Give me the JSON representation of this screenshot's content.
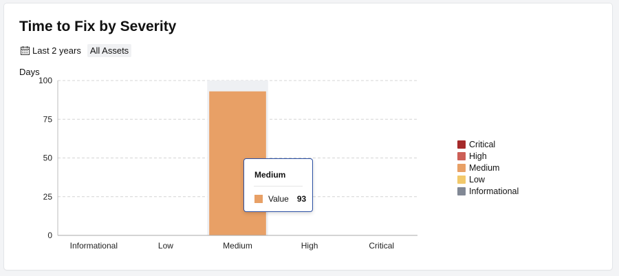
{
  "card": {
    "title": "Time to Fix by Severity",
    "filters": {
      "date_icon": "calendar-icon",
      "date_range": "Last 2 years",
      "assets": "All Assets"
    }
  },
  "chart_data": {
    "type": "bar",
    "ylabel": "Days",
    "xlabel": "",
    "categories": [
      "Informational",
      "Low",
      "Medium",
      "High",
      "Critical"
    ],
    "values": [
      0,
      0,
      93,
      0,
      0
    ],
    "ylim": [
      0,
      100
    ],
    "yticks": [
      0,
      25,
      50,
      75,
      100
    ],
    "grid": true,
    "highlighted_category": "Medium",
    "legend": {
      "position": "right",
      "items": [
        {
          "label": "Critical",
          "color": "#a52a2a"
        },
        {
          "label": "High",
          "color": "#cc5f57"
        },
        {
          "label": "Medium",
          "color": "#e8a066"
        },
        {
          "label": "Low",
          "color": "#f2c96b"
        },
        {
          "label": "Informational",
          "color": "#818895"
        }
      ]
    },
    "tooltip": {
      "title": "Medium",
      "label": "Value",
      "value": "93",
      "color": "#e8a066"
    }
  }
}
